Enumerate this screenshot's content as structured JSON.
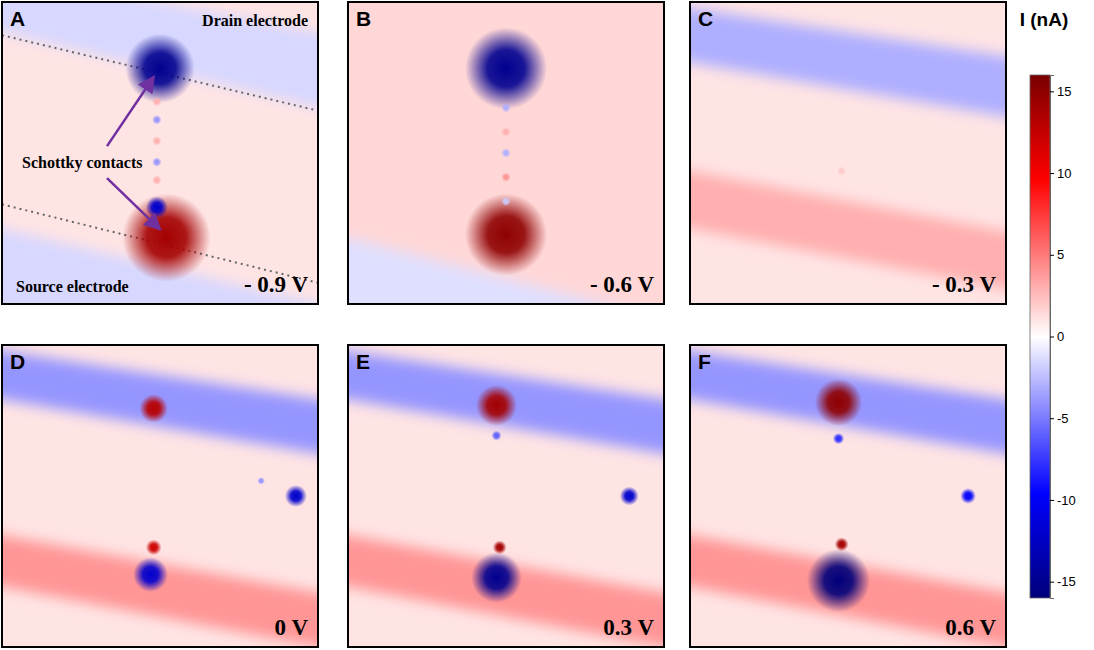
{
  "chart_data": {
    "type": "heatmap",
    "colorbar": {
      "title": "I (nA)",
      "range": [
        -16,
        16
      ],
      "ticks": [
        -15,
        -10,
        -5,
        0,
        5,
        10,
        15
      ]
    },
    "panels": [
      {
        "letter": "A",
        "label": "- 0.9 V",
        "background": 1,
        "annotations": [
          "Drain electrode",
          "Schottky contacts",
          "Source electrode"
        ],
        "edges": [
          [
            0,
            0.11,
            1,
            0.36
          ],
          [
            0,
            0.67,
            1,
            0.93
          ]
        ],
        "bands": [
          {
            "value": -1.5,
            "y_left": [
              -0.1,
              0.1
            ],
            "y_right": [
              0.1,
              0.35
            ]
          },
          {
            "value": -1.5,
            "y_left": [
              0.75,
              1.1
            ],
            "y_right": [
              1.0,
              1.2
            ]
          }
        ],
        "spots": [
          {
            "x": 0.5,
            "y": 0.22,
            "r": 0.11,
            "value": -15
          },
          {
            "x": 0.52,
            "y": 0.78,
            "r": 0.14,
            "value": 14
          },
          {
            "x": 0.49,
            "y": 0.68,
            "r": 0.035,
            "value": -12
          },
          {
            "x": 0.49,
            "y": 0.33,
            "r": 0.015,
            "value": 3
          },
          {
            "x": 0.49,
            "y": 0.39,
            "r": 0.015,
            "value": -4
          },
          {
            "x": 0.49,
            "y": 0.46,
            "r": 0.015,
            "value": 3
          },
          {
            "x": 0.49,
            "y": 0.53,
            "r": 0.015,
            "value": -4
          },
          {
            "x": 0.49,
            "y": 0.59,
            "r": 0.015,
            "value": 3
          }
        ]
      },
      {
        "letter": "B",
        "label": "- 0.6 V",
        "background": 1.5,
        "bands": [
          {
            "value": -1.2,
            "y_left": [
              0.78,
              1.1
            ],
            "y_right": [
              1.05,
              1.2
            ]
          }
        ],
        "spots": [
          {
            "x": 0.5,
            "y": 0.22,
            "r": 0.13,
            "value": -15
          },
          {
            "x": 0.5,
            "y": 0.77,
            "r": 0.13,
            "value": 15
          },
          {
            "x": 0.5,
            "y": 0.35,
            "r": 0.015,
            "value": -3
          },
          {
            "x": 0.5,
            "y": 0.43,
            "r": 0.015,
            "value": 3
          },
          {
            "x": 0.5,
            "y": 0.5,
            "r": 0.015,
            "value": -3
          },
          {
            "x": 0.5,
            "y": 0.58,
            "r": 0.015,
            "value": 4
          },
          {
            "x": 0.5,
            "y": 0.66,
            "r": 0.015,
            "value": -2
          }
        ]
      },
      {
        "letter": "C",
        "label": "- 0.3 V",
        "background": 1,
        "bands": [
          {
            "value": -3,
            "y_left": [
              0.02,
              0.2
            ],
            "y_right": [
              0.18,
              0.38
            ]
          },
          {
            "value": 3,
            "y_left": [
              0.56,
              0.75
            ],
            "y_right": [
              0.76,
              0.95
            ]
          }
        ],
        "spots": [
          {
            "x": 0.48,
            "y": 0.56,
            "r": 0.015,
            "value": 2
          }
        ]
      },
      {
        "letter": "D",
        "label": "0 V",
        "background": 1,
        "bands": [
          {
            "value": -4,
            "y_left": [
              0.02,
              0.18
            ],
            "y_right": [
              0.18,
              0.36
            ]
          },
          {
            "value": 4,
            "y_left": [
              0.63,
              0.8
            ],
            "y_right": [
              0.82,
              1.0
            ]
          }
        ],
        "spots": [
          {
            "x": 0.48,
            "y": 0.21,
            "r": 0.045,
            "value": 13
          },
          {
            "x": 0.48,
            "y": 0.67,
            "r": 0.025,
            "value": 12
          },
          {
            "x": 0.47,
            "y": 0.76,
            "r": 0.055,
            "value": -12
          },
          {
            "x": 0.93,
            "y": 0.5,
            "r": 0.035,
            "value": -12
          },
          {
            "x": 0.82,
            "y": 0.45,
            "r": 0.012,
            "value": -4
          }
        ]
      },
      {
        "letter": "E",
        "label": "0.3 V",
        "background": 1,
        "bands": [
          {
            "value": -4,
            "y_left": [
              0.02,
              0.18
            ],
            "y_right": [
              0.18,
              0.36
            ]
          },
          {
            "value": 4,
            "y_left": [
              0.63,
              0.8
            ],
            "y_right": [
              0.82,
              1.0
            ]
          }
        ],
        "spots": [
          {
            "x": 0.47,
            "y": 0.2,
            "r": 0.065,
            "value": 14
          },
          {
            "x": 0.47,
            "y": 0.3,
            "r": 0.016,
            "value": -6
          },
          {
            "x": 0.48,
            "y": 0.67,
            "r": 0.022,
            "value": 14
          },
          {
            "x": 0.47,
            "y": 0.77,
            "r": 0.08,
            "value": -15
          },
          {
            "x": 0.89,
            "y": 0.5,
            "r": 0.03,
            "value": -12
          }
        ]
      },
      {
        "letter": "F",
        "label": "0.6 V",
        "background": 1,
        "bands": [
          {
            "value": -4,
            "y_left": [
              0.02,
              0.18
            ],
            "y_right": [
              0.18,
              0.36
            ]
          },
          {
            "value": 4,
            "y_left": [
              0.63,
              0.8
            ],
            "y_right": [
              0.82,
              1.0
            ]
          }
        ],
        "spots": [
          {
            "x": 0.47,
            "y": 0.19,
            "r": 0.075,
            "value": 15
          },
          {
            "x": 0.47,
            "y": 0.31,
            "r": 0.018,
            "value": -8
          },
          {
            "x": 0.48,
            "y": 0.66,
            "r": 0.022,
            "value": 14
          },
          {
            "x": 0.47,
            "y": 0.78,
            "r": 0.1,
            "value": -16
          },
          {
            "x": 0.88,
            "y": 0.5,
            "r": 0.025,
            "value": -10
          }
        ]
      }
    ]
  }
}
